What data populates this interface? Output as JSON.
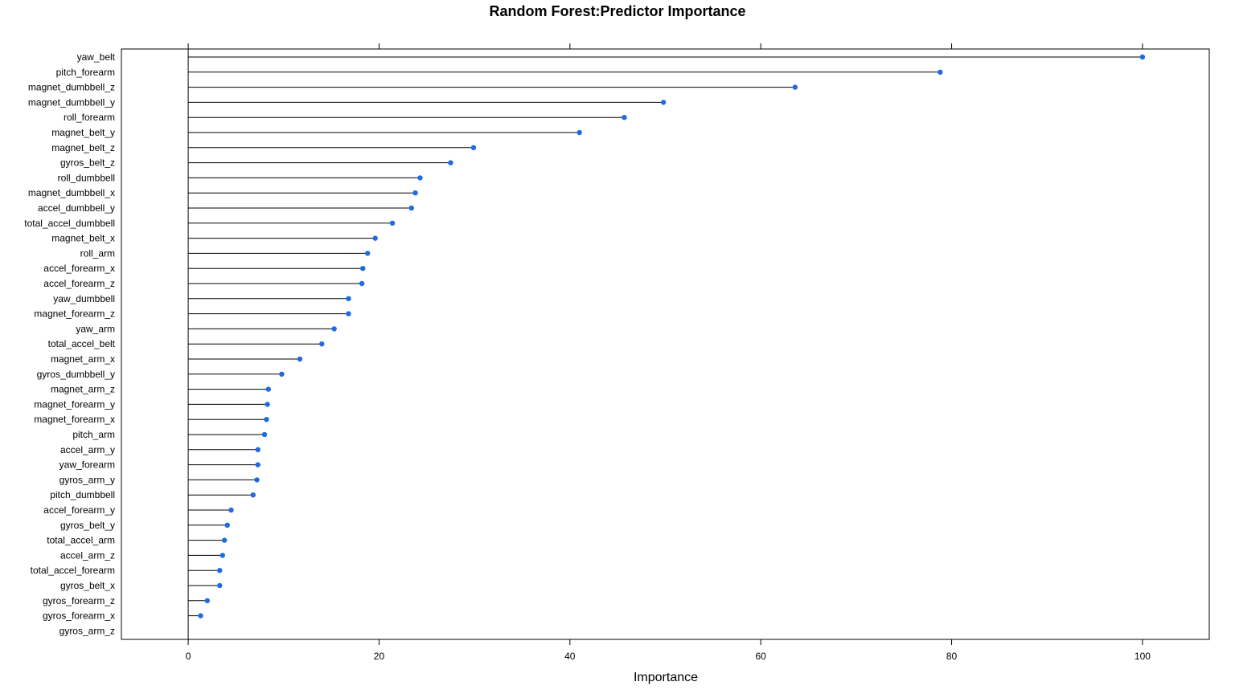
{
  "chart_data": {
    "type": "dotplot",
    "title": "Random Forest:Predictor Importance",
    "xlabel": "Importance",
    "ylabel": "",
    "xlim": [
      -7,
      107
    ],
    "xticks": [
      0,
      20,
      40,
      60,
      80,
      100
    ],
    "xtick_labels": [
      "0",
      "20",
      "40",
      "60",
      "80",
      "100"
    ],
    "point_color": "#1f6be0",
    "line_color": "#000000",
    "categories": [
      "yaw_belt",
      "pitch_forearm",
      "magnet_dumbbell_z",
      "magnet_dumbbell_y",
      "roll_forearm",
      "magnet_belt_y",
      "magnet_belt_z",
      "gyros_belt_z",
      "roll_dumbbell",
      "magnet_dumbbell_x",
      "accel_dumbbell_y",
      "total_accel_dumbbell",
      "magnet_belt_x",
      "roll_arm",
      "accel_forearm_x",
      "accel_forearm_z",
      "yaw_dumbbell",
      "magnet_forearm_z",
      "yaw_arm",
      "total_accel_belt",
      "magnet_arm_x",
      "gyros_dumbbell_y",
      "magnet_arm_z",
      "magnet_forearm_y",
      "magnet_forearm_x",
      "pitch_arm",
      "accel_arm_y",
      "yaw_forearm",
      "gyros_arm_y",
      "pitch_dumbbell",
      "accel_forearm_y",
      "gyros_belt_y",
      "total_accel_arm",
      "accel_arm_z",
      "total_accel_forearm",
      "gyros_belt_x",
      "gyros_forearm_z",
      "gyros_forearm_x",
      "gyros_arm_z"
    ],
    "values": [
      100,
      78.8,
      63.6,
      49.8,
      45.7,
      41.0,
      29.9,
      27.5,
      24.3,
      23.8,
      23.4,
      21.4,
      19.6,
      18.8,
      18.3,
      18.2,
      16.8,
      16.8,
      15.3,
      14.0,
      11.7,
      9.8,
      8.4,
      8.3,
      8.2,
      8.0,
      7.3,
      7.3,
      7.2,
      6.8,
      4.5,
      4.1,
      3.8,
      3.6,
      3.3,
      3.3,
      2.0,
      1.3,
      0
    ]
  }
}
